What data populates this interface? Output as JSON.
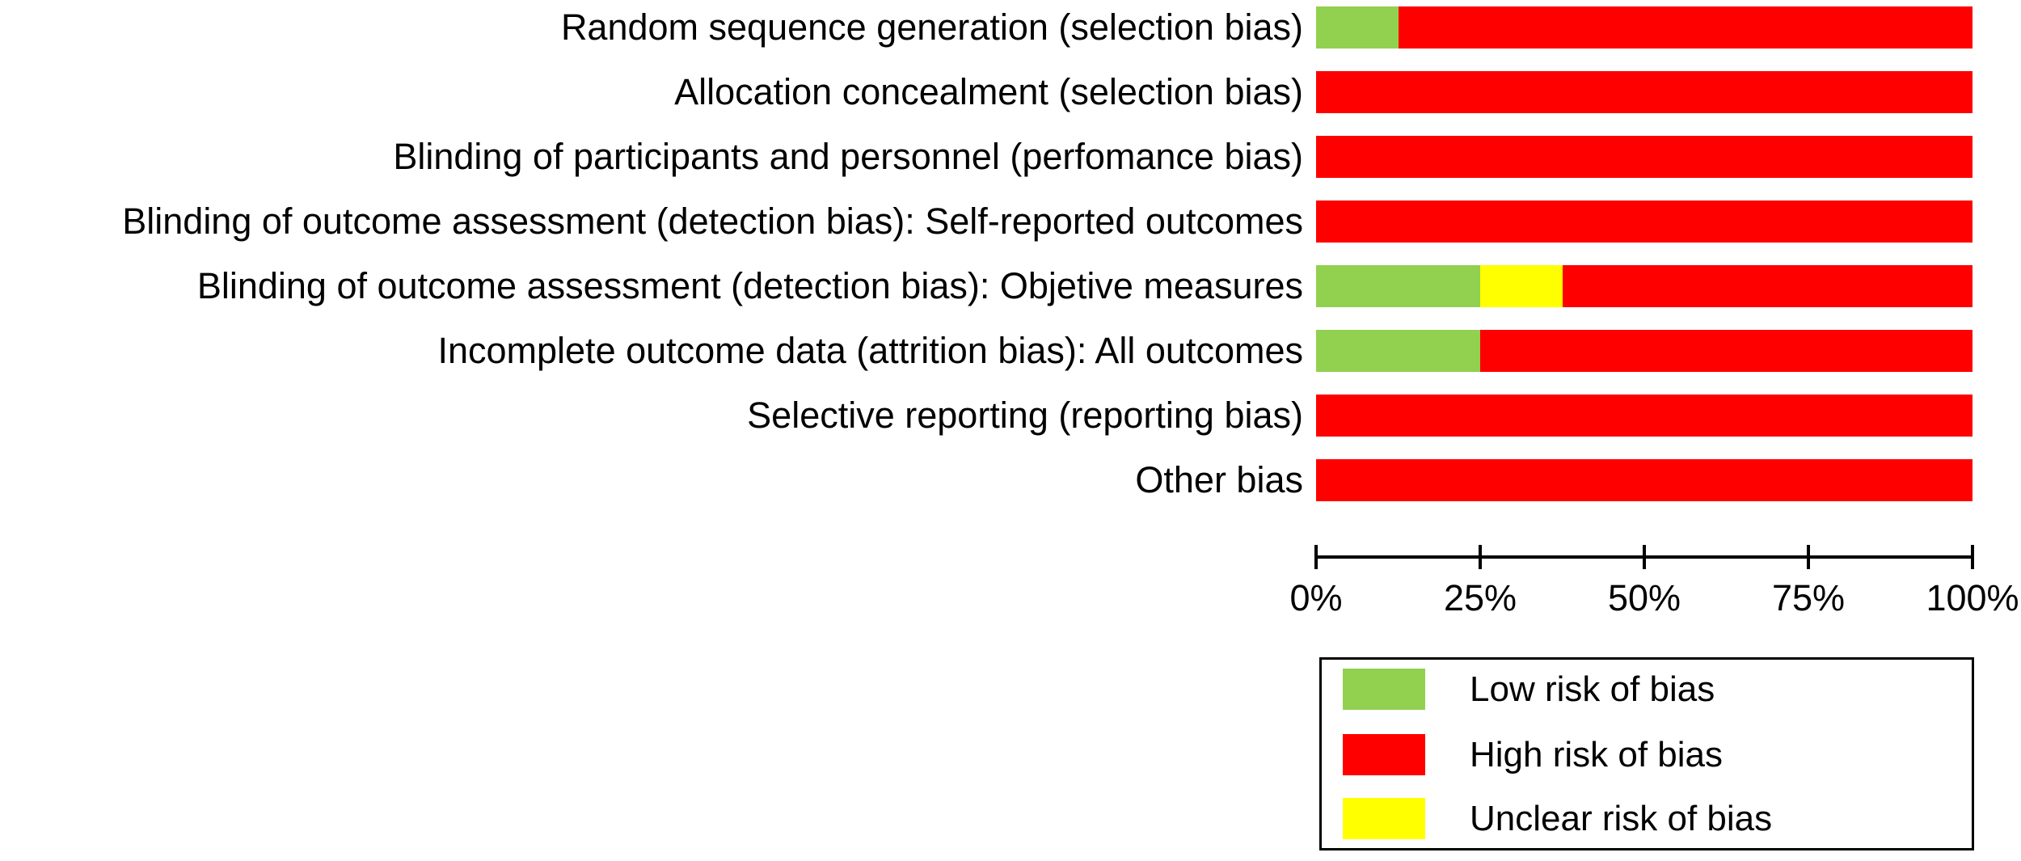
{
  "colors": {
    "low": "#92D050",
    "high": "#FF0000",
    "unclear": "#FFFF00",
    "axis": "#000000"
  },
  "chart_data": {
    "type": "bar",
    "orientation": "horizontal",
    "stacked": true,
    "value_unit": "percent",
    "title": "",
    "xlabel": "",
    "ylabel": "",
    "grid": false,
    "legend_position": "bottom-right",
    "xlim": [
      0,
      100
    ],
    "x_tick_labels": [
      "0%",
      "25%",
      "50%",
      "75%",
      "100%"
    ],
    "categories": [
      "Random sequence generation (selection bias)",
      "Allocation concealment (selection bias)",
      "Blinding of participants and personnel (perfomance bias)",
      "Blinding of outcome assessment (detection bias): Self-reported outcomes",
      "Blinding of outcome assessment (detection bias): Objetive measures",
      "Incomplete outcome data (attrition bias): All outcomes",
      "Selective reporting (reporting bias)",
      "Other bias"
    ],
    "series": [
      {
        "name": "Low risk of bias",
        "color_key": "low",
        "values": [
          12.5,
          0,
          0,
          0,
          25,
          25,
          0,
          0
        ]
      },
      {
        "name": "High risk of bias",
        "color_key": "high",
        "values": [
          87.5,
          100,
          100,
          100,
          62.5,
          75,
          100,
          100
        ]
      },
      {
        "name": "Unclear risk of bias",
        "color_key": "unclear",
        "values": [
          0,
          0,
          0,
          0,
          12.5,
          0,
          0,
          0
        ]
      }
    ],
    "stack_order": [
      "low",
      "unclear",
      "high"
    ]
  },
  "legend": {
    "items": [
      {
        "label": "Low risk of bias",
        "color_key": "low"
      },
      {
        "label": "High risk of bias",
        "color_key": "high"
      },
      {
        "label": "Unclear risk of bias",
        "color_key": "unclear"
      }
    ]
  },
  "layout": {
    "row_pitch": 80,
    "rows_top": 8,
    "legend_row_tops": [
      11,
      92,
      171
    ]
  }
}
